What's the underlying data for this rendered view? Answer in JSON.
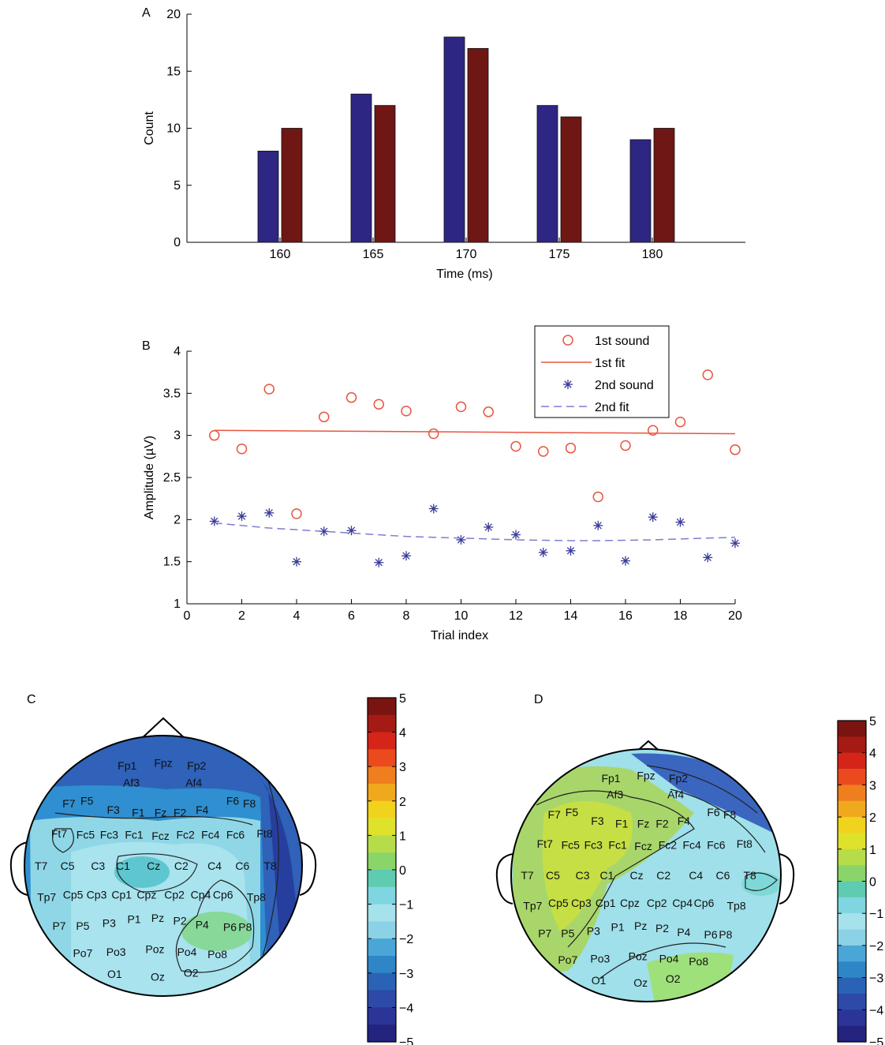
{
  "panels": {
    "a": {
      "letter": "A"
    },
    "b": {
      "letter": "B"
    },
    "c": {
      "letter": "C"
    },
    "d": {
      "letter": "D"
    }
  },
  "chart_data": [
    {
      "panel": "A",
      "type": "bar",
      "xlabel": "Time (ms)",
      "ylabel": "Count",
      "categories": [
        "160",
        "165",
        "170",
        "175",
        "180"
      ],
      "series": [
        {
          "color": "#2e2683",
          "values": [
            8,
            13,
            18,
            12,
            9
          ]
        },
        {
          "color": "#6e1715",
          "values": [
            10,
            12,
            17,
            11,
            10
          ]
        }
      ],
      "ylim": [
        0,
        20
      ],
      "yticks": [
        0,
        5,
        10,
        15,
        20
      ],
      "grid": false
    },
    {
      "panel": "B",
      "type": "scatter",
      "xlabel": "Trial index",
      "ylabel": "Amplitude (µV)",
      "xlim": [
        0,
        20
      ],
      "ylim": [
        1,
        4
      ],
      "xticks": [
        0,
        2,
        4,
        6,
        8,
        10,
        12,
        14,
        16,
        18,
        20
      ],
      "yticks": [
        1,
        1.5,
        2,
        2.5,
        3,
        3.5,
        4
      ],
      "legend_position": "top-right",
      "series": [
        {
          "name": "1st sound",
          "marker": "circle",
          "color": "#e8553f",
          "x": [
            1,
            2,
            3,
            4,
            5,
            6,
            7,
            8,
            9,
            10,
            11,
            12,
            13,
            14,
            15,
            16,
            17,
            18,
            19,
            20
          ],
          "y": [
            3.0,
            2.84,
            3.55,
            2.07,
            3.22,
            3.45,
            3.37,
            3.29,
            3.02,
            3.34,
            3.28,
            2.87,
            2.81,
            2.85,
            2.27,
            2.88,
            3.06,
            3.16,
            3.72,
            2.83
          ]
        },
        {
          "name": "1st fit",
          "line": "solid",
          "color": "#e8553f",
          "x": [
            1,
            20
          ],
          "y": [
            3.06,
            3.02
          ]
        },
        {
          "name": "2nd sound",
          "marker": "star",
          "color": "#3a3a9a",
          "x": [
            1,
            2,
            3,
            4,
            5,
            6,
            7,
            8,
            9,
            10,
            11,
            12,
            13,
            14,
            15,
            16,
            17,
            18,
            19,
            20
          ],
          "y": [
            1.98,
            2.04,
            2.08,
            1.5,
            1.86,
            1.87,
            1.49,
            1.57,
            2.13,
            1.76,
            1.91,
            1.82,
            1.61,
            1.63,
            1.93,
            1.51,
            2.03,
            1.97,
            1.55,
            1.72
          ]
        },
        {
          "name": "2nd fit",
          "line": "dashed",
          "color": "#7d7dd0",
          "x": [
            1,
            2,
            3,
            4,
            5,
            6,
            7,
            8,
            9,
            10,
            11,
            12,
            13,
            14,
            15,
            16,
            17,
            18,
            19,
            20
          ],
          "y": [
            1.96,
            1.93,
            1.9,
            1.88,
            1.86,
            1.84,
            1.82,
            1.8,
            1.79,
            1.78,
            1.77,
            1.76,
            1.755,
            1.75,
            1.75,
            1.755,
            1.76,
            1.77,
            1.78,
            1.79
          ]
        }
      ]
    },
    {
      "panel": "C",
      "type": "heatmap",
      "colorbar_ticks": [
        "5",
        "4",
        "3",
        "2",
        "1",
        "0",
        "−1",
        "−2",
        "−3",
        "−4",
        "−5"
      ],
      "clim": [
        -5,
        5
      ],
      "electrodes": [
        "Fp1",
        "Fpz",
        "Fp2",
        "Af3",
        "Af4",
        "F7",
        "F5",
        "F3",
        "F1",
        "Fz",
        "F2",
        "F4",
        "F6",
        "F8",
        "Ft7",
        "Fc5",
        "Fc3",
        "Fc1",
        "Fcz",
        "Fc2",
        "Fc4",
        "Fc6",
        "Ft8",
        "T7",
        "C5",
        "C3",
        "C1",
        "Cz",
        "C2",
        "C4",
        "C6",
        "T8",
        "Tp7",
        "Cp5",
        "Cp3",
        "Cp1",
        "Cpz",
        "Cp2",
        "Cp4",
        "Cp6",
        "Tp8",
        "P7",
        "P5",
        "P3",
        "P1",
        "Pz",
        "P2",
        "P4",
        "P6",
        "P8",
        "Po7",
        "Po3",
        "Poz",
        "Po4",
        "Po8",
        "O1",
        "Oz",
        "O2"
      ]
    },
    {
      "panel": "D",
      "type": "heatmap",
      "colorbar_ticks": [
        "5",
        "4",
        "3",
        "2",
        "1",
        "0",
        "−1",
        "−2",
        "−3",
        "−4",
        "−5"
      ],
      "clim": [
        -5,
        5
      ],
      "electrodes": [
        "Fp1",
        "Fpz",
        "Fp2",
        "Af3",
        "Af4",
        "F7",
        "F5",
        "F3",
        "F1",
        "Fz",
        "F2",
        "F4",
        "F6",
        "F8",
        "Ft7",
        "Fc5",
        "Fc3",
        "Fc1",
        "Fcz",
        "Fc2",
        "Fc4",
        "Fc6",
        "Ft8",
        "T7",
        "C5",
        "C3",
        "C1",
        "Cz",
        "C2",
        "C4",
        "C6",
        "T8",
        "Tp7",
        "Cp5",
        "Cp3",
        "Cp1",
        "Cpz",
        "Cp2",
        "Cp4",
        "Cp6",
        "Tp8",
        "P7",
        "P5",
        "P3",
        "P1",
        "Pz",
        "P2",
        "P4",
        "P6",
        "P8",
        "Po7",
        "Po3",
        "Poz",
        "Po4",
        "Po8",
        "O1",
        "Oz",
        "O2"
      ]
    }
  ]
}
